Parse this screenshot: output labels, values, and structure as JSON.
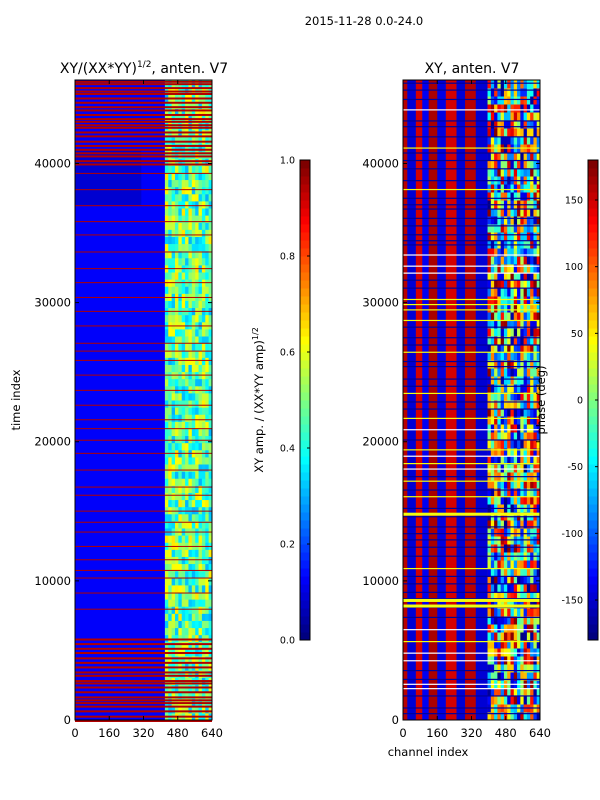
{
  "suptitle": "2015-11-28 0.0-24.0",
  "colors": {
    "jet": [
      "#00007f",
      "#0000ff",
      "#007fff",
      "#00ffff",
      "#7fff7f",
      "#ffff00",
      "#ff7f00",
      "#ff0000",
      "#7f0000"
    ],
    "axis": "#000000",
    "background": "#ffffff"
  },
  "chart_data": [
    {
      "type": "heatmap",
      "title_main": "XY/(XX*YY)",
      "title_sup": "1/2",
      "title_tail": ", anten. V7",
      "xlabel": "",
      "ylabel": "time index",
      "xlim": [
        0,
        640
      ],
      "ylim": [
        0,
        46000
      ],
      "xticks": [
        0,
        160,
        320,
        480,
        640
      ],
      "xtick_labels": [
        "0",
        "160",
        "320",
        "480",
        "640"
      ],
      "yticks": [
        0,
        10000,
        20000,
        30000,
        40000
      ],
      "ytick_labels": [
        "0",
        "10000",
        "20000",
        "30000",
        "40000"
      ],
      "pattern": {
        "base_value": 0.12,
        "band_range": [
          420,
          640
        ],
        "band_value_range": [
          0.3,
          0.65
        ],
        "red_stripe_value": 0.95,
        "dense_red_regions": [
          [
            0,
            6000
          ],
          [
            40000,
            46000
          ]
        ],
        "sparse_red_regions": [
          [
            8000,
            40000
          ]
        ]
      },
      "colorbar": {
        "label_main": "XY amp. / (XX*YY amp)",
        "label_sup": "1/2",
        "range": [
          0.0,
          1.0
        ],
        "ticks": [
          0.0,
          0.2,
          0.4,
          0.6,
          0.8,
          1.0
        ],
        "tick_labels": [
          "0.0",
          "0.2",
          "0.4",
          "0.6",
          "0.8",
          "1.0"
        ]
      }
    },
    {
      "type": "heatmap",
      "title": "XY, anten. V7",
      "xlabel": "channel index",
      "ylabel": "",
      "xlim": [
        0,
        640
      ],
      "ylim": [
        0,
        46000
      ],
      "xticks": [
        0,
        160,
        320,
        480,
        640
      ],
      "xtick_labels": [
        "0",
        "160",
        "320",
        "480",
        "640"
      ],
      "yticks": [
        0,
        10000,
        20000,
        30000,
        40000
      ],
      "ytick_labels": [
        "0",
        "10000",
        "20000",
        "30000",
        "40000"
      ],
      "column_bands": [
        {
          "from": 0,
          "to": 20,
          "value": 160
        },
        {
          "from": 20,
          "to": 60,
          "value": -150
        },
        {
          "from": 60,
          "to": 90,
          "value": 150
        },
        {
          "from": 90,
          "to": 120,
          "value": -140
        },
        {
          "from": 120,
          "to": 160,
          "value": 165
        },
        {
          "from": 160,
          "to": 200,
          "value": -145
        },
        {
          "from": 200,
          "to": 250,
          "value": 150
        },
        {
          "from": 250,
          "to": 290,
          "value": -150
        },
        {
          "from": 290,
          "to": 340,
          "value": 160
        },
        {
          "from": 340,
          "to": 395,
          "value": -150
        },
        {
          "from": 395,
          "to": 640,
          "value": 120
        }
      ],
      "noisy_band_range": [
        395,
        640
      ],
      "colorbar": {
        "label": "phase (deg)",
        "range": [
          -180,
          180
        ],
        "ticks": [
          -150,
          -100,
          -50,
          0,
          50,
          100,
          150
        ],
        "tick_labels": [
          "-150",
          "-100",
          "-50",
          "0",
          "50",
          "100",
          "150"
        ]
      }
    }
  ]
}
